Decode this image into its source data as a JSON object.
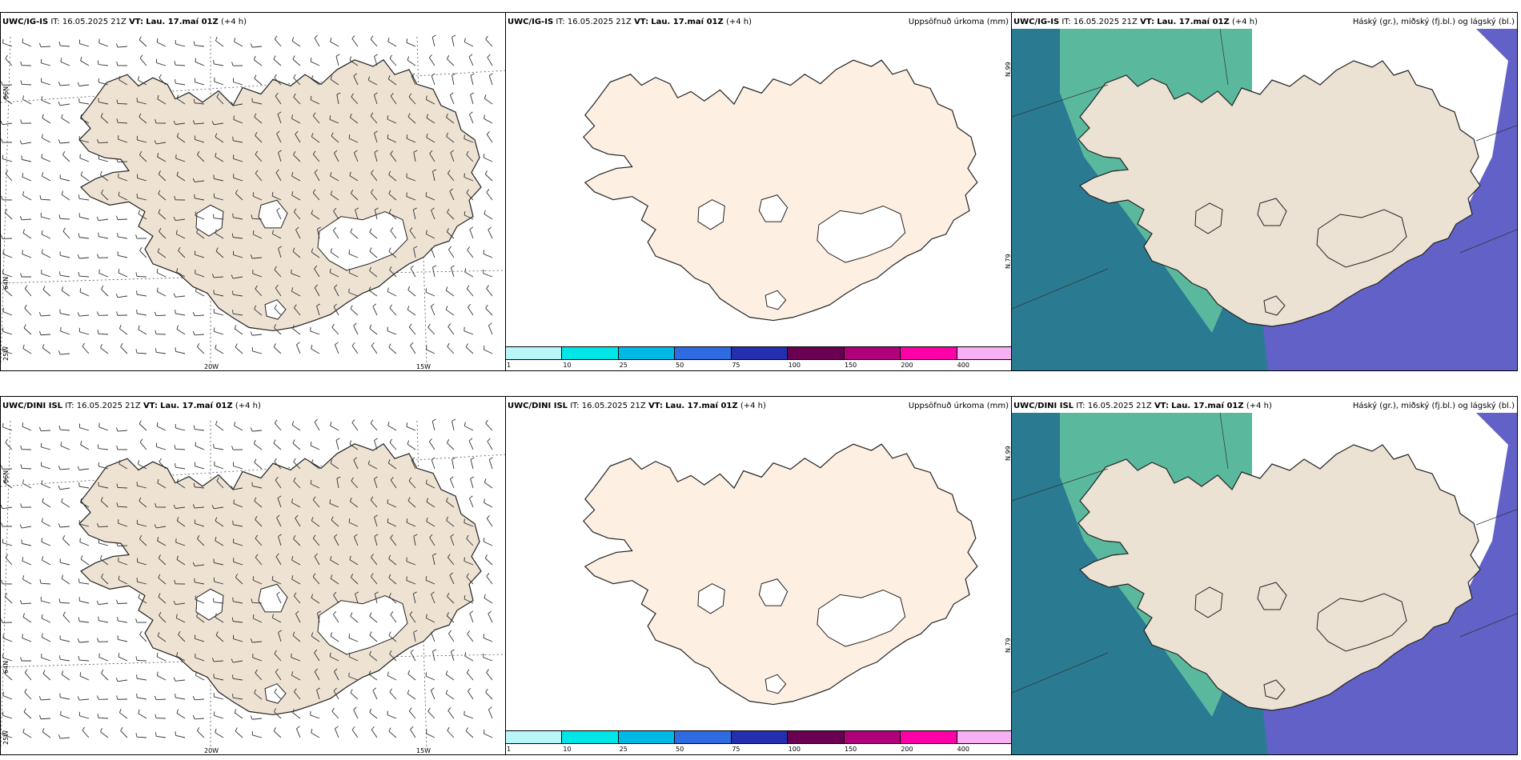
{
  "panels": [
    {
      "model": "UWC/IG-IS",
      "it_label": "IT:",
      "it": "16.05.2025 21Z",
      "vt_label": "VT:",
      "vt": "Lau. 17.maí 01Z",
      "lead": "(+4 h)",
      "subtitle": ""
    },
    {
      "model": "UWC/IG-IS",
      "it_label": "IT:",
      "it": "16.05.2025 21Z",
      "vt_label": "VT:",
      "vt": "Lau. 17.maí 01Z",
      "lead": "(+4 h)",
      "subtitle": "Uppsöfnuð úrkoma (mm)"
    },
    {
      "model": "UWC/IG-IS",
      "it_label": "IT:",
      "it": "16.05.2025 21Z",
      "vt_label": "VT:",
      "vt": "Lau. 17.maí 01Z",
      "lead": "(+4 h)",
      "subtitle": "Háský (gr.), miðský (fj.bl.) og lágský (bl.)"
    },
    {
      "model": "UWC/DINI ISL",
      "it_label": "IT:",
      "it": "16.05.2025 21Z",
      "vt_label": "VT:",
      "vt": "Lau. 17.maí 01Z",
      "lead": "(+4 h)",
      "subtitle": ""
    },
    {
      "model": "UWC/DINI ISL",
      "it_label": "IT:",
      "it": "16.05.2025 21Z",
      "vt_label": "VT:",
      "vt": "Lau. 17.maí 01Z",
      "lead": "(+4 h)",
      "subtitle": "Uppsöfnuð úrkoma (mm)"
    },
    {
      "model": "UWC/DINI ISL",
      "it_label": "IT:",
      "it": "16.05.2025 21Z",
      "vt_label": "VT:",
      "vt": "Lau. 17.maí 01Z",
      "lead": "(+4 h)",
      "subtitle": "Háský (gr.), miðský (fj.bl.) og lágský (bl.)"
    }
  ],
  "grid_labels": {
    "lat66": "66N",
    "lat64": "64N",
    "lon25": "25W",
    "lon20": "20W",
    "lon15": "15W"
  },
  "colorbar": {
    "labels": [
      "1",
      "10",
      "25",
      "50",
      "75",
      "100",
      "150",
      "200",
      "400"
    ],
    "colors": [
      "#b7f7f7",
      "#00e5e8",
      "#00b8e6",
      "#2f6be0",
      "#2430b0",
      "#6a0052",
      "#b0007a",
      "#ff00a8",
      "#f7b0f2"
    ]
  },
  "colors": {
    "land_wind": "#eee3d3",
    "land_precip": "#fdf0e2",
    "land_cloud": "#ece2d4",
    "high_cloud": "#5fbf9f",
    "mid_cloud": "#2a7b92",
    "low_cloud": "#6161c8"
  }
}
